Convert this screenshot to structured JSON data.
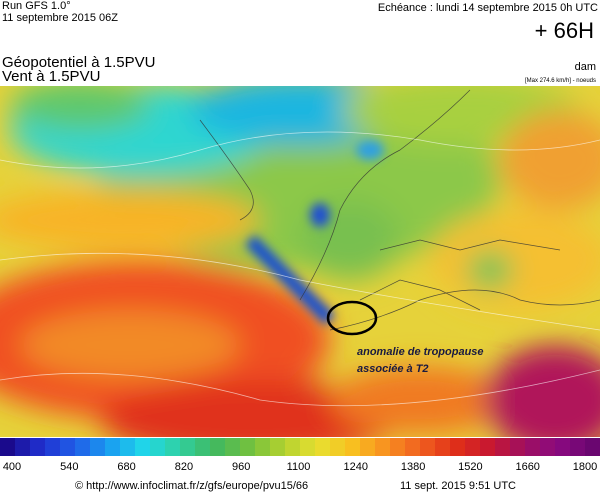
{
  "header": {
    "run": "Run GFS 1.0°",
    "run_date": "11 septembre 2015 06Z",
    "echeance": "Echéance : lundi 14 septembre 2015 0h UTC",
    "lead": "+ 66H",
    "title": "Géopotentiel à 1.5PVU",
    "subtitle": "Vent à 1.5PVU",
    "unit": "dam",
    "max_wind": "[Max 274.6 km/h] - noeuds"
  },
  "annotation": {
    "lines": [
      "anomalie de tropopause",
      "associée à T2"
    ]
  },
  "colorbar": {
    "labels": [
      400,
      540,
      680,
      820,
      960,
      1100,
      1240,
      1380,
      1520,
      1660,
      1800
    ]
  },
  "footer": {
    "source": "© http://www.infoclimat.fr/z/gfs/europe/pvu15/66",
    "date": "11 sept. 2015  9:51 UTC"
  }
}
